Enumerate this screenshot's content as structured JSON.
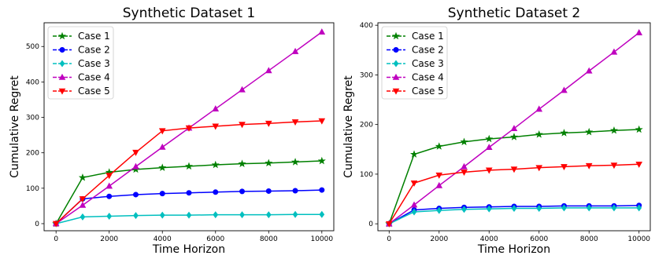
{
  "chart_data": [
    {
      "type": "line",
      "title": "Synthetic Dataset 1",
      "xlabel": "Time Horizon",
      "ylabel": "Cumulative Regret",
      "xlim": [
        -450,
        10450
      ],
      "ylim": [
        -20,
        567
      ],
      "xticks": [
        0,
        2000,
        4000,
        6000,
        8000,
        10000
      ],
      "yticks": [
        0,
        100,
        200,
        300,
        400,
        500
      ],
      "grid": false,
      "legend_position": "top-left",
      "x": [
        0,
        1000,
        2000,
        3000,
        4000,
        5000,
        6000,
        7000,
        8000,
        9000,
        10000
      ],
      "series": [
        {
          "name": "Case 1",
          "color": "#008000",
          "marker": "star",
          "values": [
            0,
            130,
            145,
            153,
            158,
            162,
            166,
            169,
            171,
            174,
            177
          ]
        },
        {
          "name": "Case 2",
          "color": "#0000ff",
          "marker": "circle",
          "values": [
            0,
            70,
            77,
            82,
            85,
            87,
            89,
            91,
            92,
            93,
            95
          ]
        },
        {
          "name": "Case 3",
          "color": "#00bfbf",
          "marker": "diamond",
          "values": [
            0,
            19,
            21,
            23,
            24,
            24,
            25,
            25,
            25,
            26,
            26
          ]
        },
        {
          "name": "Case 4",
          "color": "#bf00bf",
          "marker": "triangle-up",
          "values": [
            0,
            52,
            106,
            161,
            216,
            270,
            324,
            378,
            432,
            486,
            541
          ]
        },
        {
          "name": "Case 5",
          "color": "#ff0000",
          "marker": "triangle-down",
          "values": [
            0,
            70,
            136,
            201,
            262,
            270,
            275,
            280,
            283,
            287,
            290
          ]
        }
      ]
    },
    {
      "type": "line",
      "title": "Synthetic Dataset 2",
      "xlabel": "Time Horizon",
      "ylabel": "Cumulative Regret",
      "xlim": [
        -450,
        10450
      ],
      "ylim": [
        -14,
        405
      ],
      "xticks": [
        0,
        2000,
        4000,
        6000,
        8000,
        10000
      ],
      "yticks": [
        0,
        100,
        200,
        300,
        400
      ],
      "grid": false,
      "legend_position": "top-left",
      "x": [
        0,
        1000,
        2000,
        3000,
        4000,
        5000,
        6000,
        7000,
        8000,
        9000,
        10000
      ],
      "series": [
        {
          "name": "Case 1",
          "color": "#008000",
          "marker": "star",
          "values": [
            0,
            140,
            156,
            165,
            171,
            175,
            180,
            183,
            185,
            188,
            190
          ]
        },
        {
          "name": "Case 2",
          "color": "#0000ff",
          "marker": "circle",
          "values": [
            0,
            28,
            31,
            33,
            34,
            35,
            35,
            36,
            36,
            36,
            37
          ]
        },
        {
          "name": "Case 3",
          "color": "#00bfbf",
          "marker": "diamond",
          "values": [
            0,
            24,
            27,
            29,
            30,
            31,
            31,
            32,
            32,
            32,
            32
          ]
        },
        {
          "name": "Case 4",
          "color": "#bf00bf",
          "marker": "triangle-up",
          "values": [
            0,
            38,
            77,
            115,
            154,
            192,
            231,
            269,
            308,
            346,
            385
          ]
        },
        {
          "name": "Case 5",
          "color": "#ff0000",
          "marker": "triangle-down",
          "values": [
            0,
            82,
            98,
            104,
            108,
            110,
            113,
            115,
            117,
            118,
            120
          ]
        }
      ]
    }
  ]
}
